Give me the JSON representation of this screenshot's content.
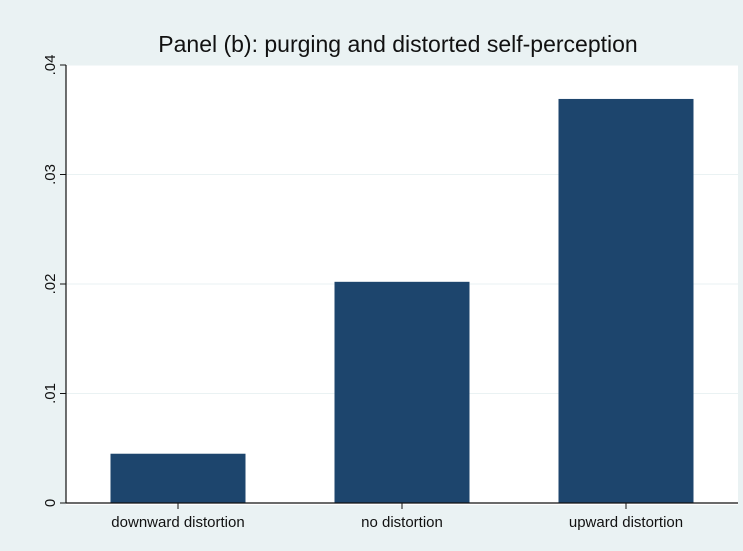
{
  "chart_data": {
    "type": "bar",
    "title": "Panel (b): purging and distorted self-perception",
    "categories": [
      "downward distortion",
      "no distortion",
      "upward distortion"
    ],
    "values": [
      0.0045,
      0.0202,
      0.0369
    ],
    "ylim": [
      0,
      0.04
    ],
    "yticks": [
      0,
      0.01,
      0.02,
      0.03,
      0.04
    ],
    "ytick_labels": [
      "0",
      ".01",
      ".02",
      ".03",
      ".04"
    ],
    "xlabel": "",
    "ylabel": "",
    "grid": true,
    "legend": "none",
    "colors": {
      "bar": "#1d456d",
      "background": "#eaf2f3",
      "plot_background": "#ffffff",
      "grid": "#eaf2f3"
    }
  }
}
